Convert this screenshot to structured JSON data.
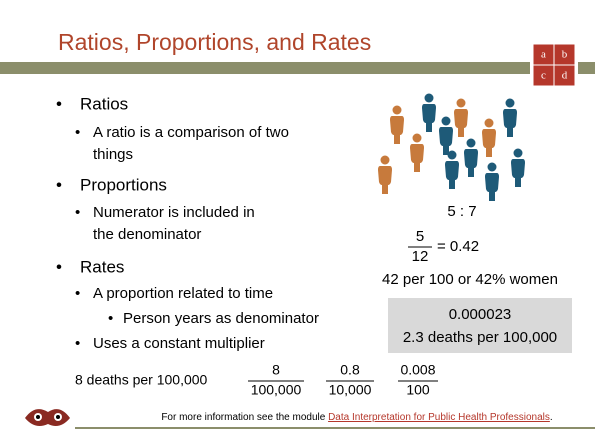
{
  "header": {
    "title": "Ratios, Proportions, and Rates",
    "badge": [
      "a",
      "b",
      "c",
      "d"
    ]
  },
  "bullets": [
    {
      "text": "Ratios",
      "subs": [
        {
          "lines": [
            "A ratio is a comparison of two",
            "things"
          ]
        }
      ]
    },
    {
      "text": "Proportions",
      "subs": [
        {
          "lines": [
            "Numerator is included in",
            "the denominator"
          ]
        }
      ]
    },
    {
      "text": "Rates",
      "subs": [
        {
          "lines": [
            "A proportion related to time"
          ],
          "subs": [
            "Person years as denominator"
          ]
        },
        {
          "lines": [
            "Uses a constant multiplier"
          ]
        }
      ]
    }
  ],
  "figure": {
    "ratio": "5 : 7",
    "numerator": "5",
    "denominator": "12",
    "result": "= 0.42",
    "caption": "42 per 100 or 42% women"
  },
  "box": {
    "lines": [
      "0.000023",
      "2.3 deaths per 100,000"
    ]
  },
  "rate_row": {
    "label": "8 deaths per 100,000",
    "fractions": [
      [
        "8",
        "100,000"
      ],
      [
        "0.8",
        "10,000"
      ],
      [
        "0.008",
        "100"
      ]
    ]
  },
  "footer": {
    "text": "For more information see the module ",
    "link": "Data Interpretation for Public Health Professionals",
    "end": "."
  }
}
